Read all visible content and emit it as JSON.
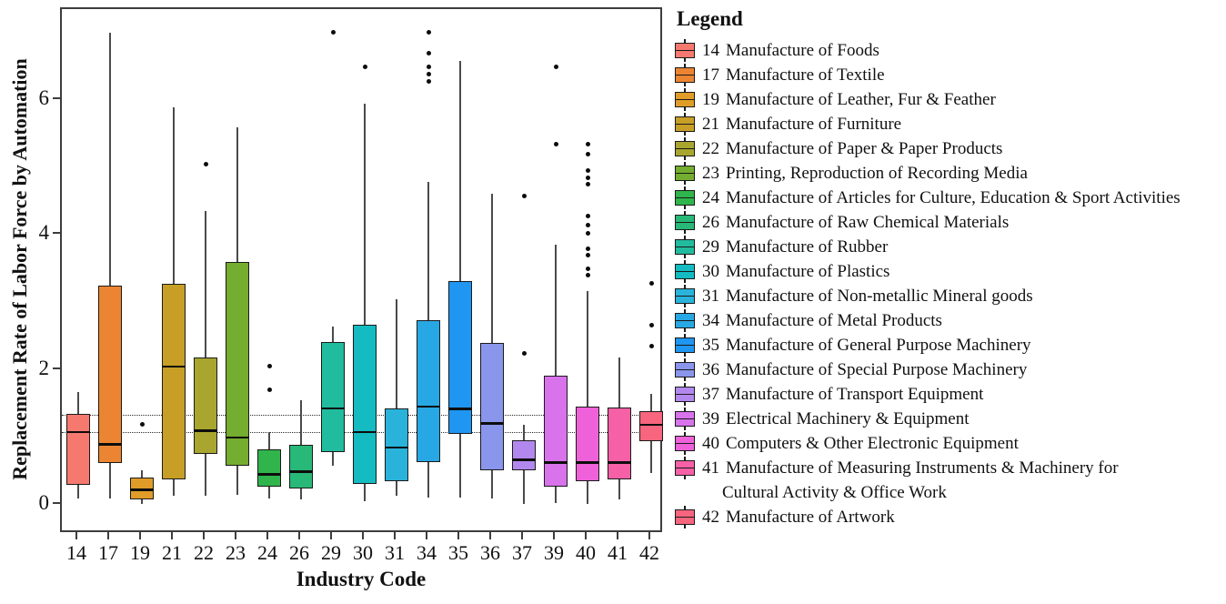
{
  "chart_data": {
    "type": "boxplot",
    "title": "",
    "xlabel": "Industry Code",
    "ylabel": "Replacement Rate of Labor Force by Automation",
    "legend_title": "Legend",
    "y_ticks": [
      0,
      2,
      4,
      6
    ],
    "ylim": [
      -0.43,
      7.35
    ],
    "grid": false,
    "legend_position": "right",
    "reference_lines": [
      {
        "value": 1.32,
        "style": "dotted",
        "color": "#2b2b2b"
      },
      {
        "value": 1.06,
        "style": "dotted",
        "color": "#2b2b2b"
      }
    ],
    "categories": [
      "14",
      "17",
      "19",
      "21",
      "22",
      "23",
      "24",
      "26",
      "29",
      "30",
      "31",
      "34",
      "35",
      "36",
      "37",
      "39",
      "40",
      "41",
      "42"
    ],
    "boxes": [
      {
        "code": "14",
        "name": "Manufacture of Foods",
        "name2": "",
        "color": "#F5796F",
        "lo": 0.1,
        "q1": 0.3,
        "med": 1.08,
        "q3": 1.35,
        "hi": 1.68,
        "outliers": []
      },
      {
        "code": "17",
        "name": "Manufacture of Textile",
        "name2": "",
        "color": "#EC8532",
        "lo": 0.1,
        "q1": 0.62,
        "med": 0.9,
        "q3": 3.25,
        "hi": 7.0,
        "outliers": []
      },
      {
        "code": "19",
        "name": "Manufacture of Leather, Fur & Feather",
        "name2": "",
        "color": "#DF9C28",
        "lo": 0.02,
        "q1": 0.08,
        "med": 0.22,
        "q3": 0.4,
        "hi": 0.52,
        "outliers": [
          1.2
        ]
      },
      {
        "code": "21",
        "name": "Manufacture of Furniture",
        "name2": "",
        "color": "#C79F27",
        "lo": 0.13,
        "q1": 0.38,
        "med": 2.05,
        "q3": 3.28,
        "hi": 5.9,
        "outliers": []
      },
      {
        "code": "22",
        "name": "Manufacture of Paper & Paper Products",
        "name2": "",
        "color": "#A8A62E",
        "lo": 0.13,
        "q1": 0.76,
        "med": 1.1,
        "q3": 2.18,
        "hi": 4.35,
        "outliers": [
          5.05
        ]
      },
      {
        "code": "23",
        "name": "Printing, Reproduction of Recording Media",
        "name2": "",
        "color": "#74AD2F",
        "lo": 0.15,
        "q1": 0.58,
        "med": 1.0,
        "q3": 3.6,
        "hi": 5.6,
        "outliers": []
      },
      {
        "code": "24",
        "name": "Manufacture of Articles for Culture, Education & Sport Activities",
        "name2": "",
        "color": "#2FB54B",
        "lo": 0.09,
        "q1": 0.27,
        "med": 0.45,
        "q3": 0.83,
        "hi": 1.08,
        "outliers": [
          2.06,
          1.71
        ]
      },
      {
        "code": "26",
        "name": "Manufacture of Raw Chemical Materials",
        "name2": "",
        "color": "#28B877",
        "lo": 0.08,
        "q1": 0.24,
        "med": 0.49,
        "q3": 0.89,
        "hi": 1.55,
        "outliers": []
      },
      {
        "code": "29",
        "name": "Manufacture of Rubber",
        "name2": "",
        "color": "#21BC9E",
        "lo": 0.58,
        "q1": 0.78,
        "med": 1.43,
        "q3": 2.42,
        "hi": 2.65,
        "outliers": [
          7.0
        ]
      },
      {
        "code": "30",
        "name": "Manufacture of Plastics",
        "name2": "",
        "color": "#14BBC0",
        "lo": 0.06,
        "q1": 0.31,
        "med": 1.08,
        "q3": 2.67,
        "hi": 5.95,
        "outliers": [
          6.5
        ]
      },
      {
        "code": "31",
        "name": "Manufacture of Non-metallic Mineral goods",
        "name2": "",
        "color": "#29B3DB",
        "lo": 0.13,
        "q1": 0.35,
        "med": 0.85,
        "q3": 1.43,
        "hi": 3.05,
        "outliers": []
      },
      {
        "code": "34",
        "name": "Manufacture of Metal Products",
        "name2": "",
        "color": "#27A8E4",
        "lo": 0.11,
        "q1": 0.63,
        "med": 1.46,
        "q3": 2.74,
        "hi": 4.79,
        "outliers": [
          7.0,
          6.7,
          6.5,
          6.38,
          6.28
        ]
      },
      {
        "code": "35",
        "name": "Manufacture of General Purpose Machinery",
        "name2": "",
        "color": "#1E96F2",
        "lo": 0.11,
        "q1": 1.05,
        "med": 1.42,
        "q3": 3.32,
        "hi": 6.58,
        "outliers": []
      },
      {
        "code": "36",
        "name": "Manufacture of Special Purpose Machinery",
        "name2": "",
        "color": "#8A96EC",
        "lo": 0.09,
        "q1": 0.51,
        "med": 1.21,
        "q3": 2.4,
        "hi": 4.61,
        "outliers": []
      },
      {
        "code": "37",
        "name": "Manufacture of Transport Equipment",
        "name2": "",
        "color": "#B388EE",
        "lo": 0.02,
        "q1": 0.51,
        "med": 0.67,
        "q3": 0.96,
        "hi": 1.19,
        "outliers": [
          4.58,
          2.25
        ]
      },
      {
        "code": "39",
        "name": "Electrical Machinery & Equipment",
        "name2": "",
        "color": "#D873EC",
        "lo": 0.03,
        "q1": 0.27,
        "med": 0.63,
        "q3": 1.91,
        "hi": 3.86,
        "outliers": [
          6.5,
          5.35
        ]
      },
      {
        "code": "40",
        "name": "Computers & Other Electronic Equipment",
        "name2": "",
        "color": "#EF61D8",
        "lo": 0.02,
        "q1": 0.35,
        "med": 0.63,
        "q3": 1.46,
        "hi": 3.17,
        "outliers": [
          5.35,
          5.2,
          4.95,
          4.85,
          4.75,
          4.28,
          4.15,
          4.02,
          3.8,
          3.7,
          3.5,
          3.4
        ]
      },
      {
        "code": "41",
        "name": "Manufacture of Measuring Instruments & Machinery for",
        "name2": "Cultural Activity & Office Work",
        "color": "#F560A6",
        "lo": 0.08,
        "q1": 0.38,
        "med": 0.63,
        "q3": 1.44,
        "hi": 2.18,
        "outliers": []
      },
      {
        "code": "42",
        "name": "Manufacture of Artwork",
        "name2": "",
        "color": "#F8657E",
        "lo": 0.47,
        "q1": 0.94,
        "med": 1.19,
        "q3": 1.39,
        "hi": 1.64,
        "outliers": [
          3.28,
          2.67,
          2.35
        ]
      }
    ]
  }
}
